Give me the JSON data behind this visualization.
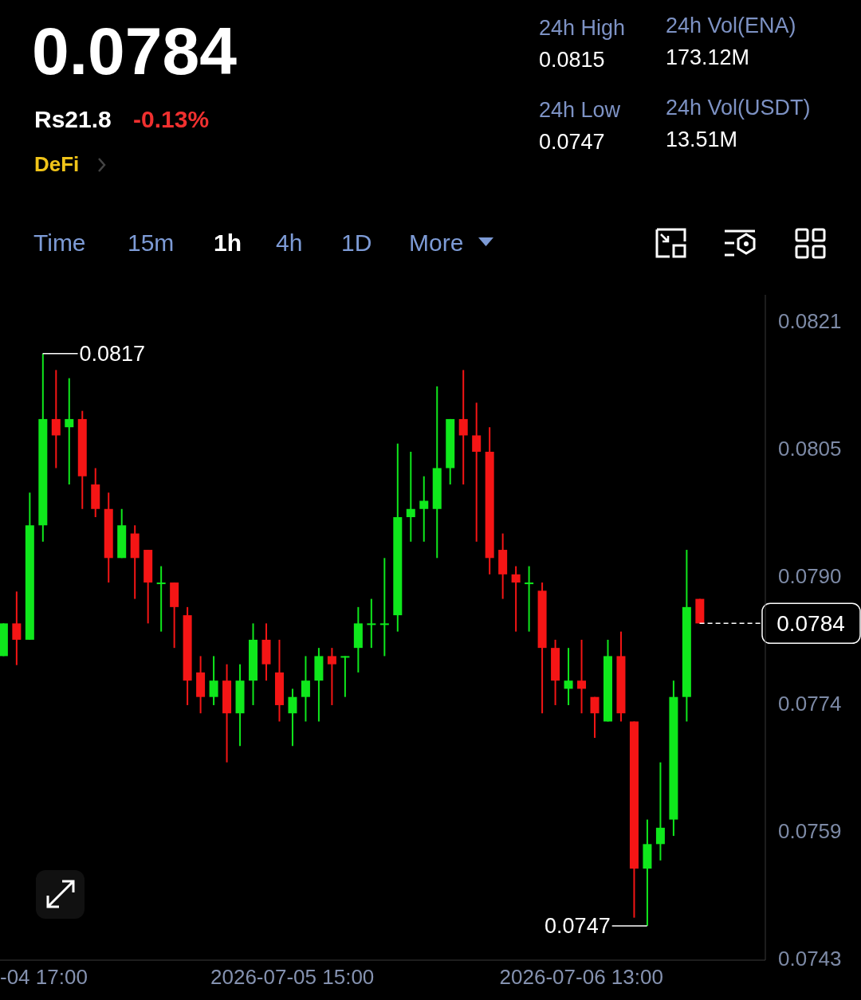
{
  "chart_data": {
    "type": "candlestick",
    "title": "0.0784",
    "annotations": [
      "Rs21.8",
      "-0.13%",
      "DeFi",
      "24h High",
      "0.0815",
      "24h Vol(ENA)",
      "173.12M",
      "24h Low",
      "0.0747",
      "24h Vol(USDT)",
      "13.51M",
      "Time",
      "15m",
      "1h",
      "4h",
      "1D",
      "More",
      {
        "text": "0.0817",
        "x": "2026-07-04T20:00",
        "y": 0.0817
      },
      {
        "text": "0.0747",
        "x": "2026-07-06T18:00",
        "y": 0.0747
      }
    ],
    "x": [
      "2026-07-04T17:00",
      "2026-07-04T18:00",
      "2026-07-04T19:00",
      "2026-07-04T20:00",
      "2026-07-04T21:00",
      "2026-07-04T22:00",
      "2026-07-04T23:00",
      "2026-07-05T00:00",
      "2026-07-05T01:00",
      "2026-07-05T02:00",
      "2026-07-05T03:00",
      "2026-07-05T04:00",
      "2026-07-05T05:00",
      "2026-07-05T06:00",
      "2026-07-05T07:00",
      "2026-07-05T08:00",
      "2026-07-05T09:00",
      "2026-07-05T10:00",
      "2026-07-05T11:00",
      "2026-07-05T12:00",
      "2026-07-05T13:00",
      "2026-07-05T14:00",
      "2026-07-05T15:00",
      "2026-07-05T16:00",
      "2026-07-05T17:00",
      "2026-07-05T18:00",
      "2026-07-05T19:00",
      "2026-07-05T20:00",
      "2026-07-05T21:00",
      "2026-07-05T22:00",
      "2026-07-05T23:00",
      "2026-07-06T00:00",
      "2026-07-06T01:00",
      "2026-07-06T02:00",
      "2026-07-06T03:00",
      "2026-07-06T04:00",
      "2026-07-06T05:00",
      "2026-07-06T06:00",
      "2026-07-06T07:00",
      "2026-07-06T08:00",
      "2026-07-06T09:00",
      "2026-07-06T10:00",
      "2026-07-06T11:00",
      "2026-07-06T12:00",
      "2026-07-06T13:00",
      "2026-07-06T14:00",
      "2026-07-06T15:00",
      "2026-07-06T16:00",
      "2026-07-06T17:00",
      "2026-07-06T18:00",
      "2026-07-06T19:00",
      "2026-07-06T20:00",
      "2026-07-06T21:00",
      "2026-07-06T22:00"
    ],
    "ohlc": [
      [
        0.078,
        0.0784,
        0.078,
        0.0784
      ],
      [
        0.0784,
        0.07879,
        0.07789,
        0.0782
      ],
      [
        0.0782,
        0.08,
        0.0782,
        0.0796
      ],
      [
        0.0796,
        0.0817,
        0.0794,
        0.0809
      ],
      [
        0.0809,
        0.0815,
        0.0803,
        0.0807
      ],
      [
        0.0808,
        0.0814,
        0.0801,
        0.0809
      ],
      [
        0.0809,
        0.081,
        0.0798,
        0.0802
      ],
      [
        0.0801,
        0.0803,
        0.0797,
        0.0798
      ],
      [
        0.0798,
        0.08,
        0.0789,
        0.0792
      ],
      [
        0.0792,
        0.0798,
        0.0792,
        0.0796
      ],
      [
        0.0795,
        0.0796,
        0.0787,
        0.0792
      ],
      [
        0.0793,
        0.0793,
        0.0784,
        0.0789
      ],
      [
        0.0789,
        0.0791,
        0.0783,
        0.0789
      ],
      [
        0.0789,
        0.0789,
        0.0781,
        0.0786
      ],
      [
        0.0785,
        0.0786,
        0.0774,
        0.0777
      ],
      [
        0.0778,
        0.078,
        0.0773,
        0.0775
      ],
      [
        0.0775,
        0.078,
        0.0774,
        0.0777
      ],
      [
        0.0777,
        0.0779,
        0.0767,
        0.0773
      ],
      [
        0.0773,
        0.0779,
        0.0769,
        0.0777
      ],
      [
        0.0777,
        0.0784,
        0.0774,
        0.0782
      ],
      [
        0.0782,
        0.0784,
        0.0777,
        0.0779
      ],
      [
        0.0778,
        0.0782,
        0.0772,
        0.0774
      ],
      [
        0.0773,
        0.0776,
        0.0769,
        0.0775
      ],
      [
        0.0775,
        0.078,
        0.0772,
        0.0777
      ],
      [
        0.0777,
        0.0781,
        0.0772,
        0.078
      ],
      [
        0.078,
        0.0781,
        0.0774,
        0.0779
      ],
      [
        0.078,
        0.078,
        0.0775,
        0.078
      ],
      [
        0.0781,
        0.0786,
        0.0778,
        0.0784
      ],
      [
        0.0784,
        0.0787,
        0.0781,
        0.0784
      ],
      [
        0.0784,
        0.0792,
        0.078,
        0.0784
      ],
      [
        0.0785,
        0.0806,
        0.0783,
        0.0797
      ],
      [
        0.0797,
        0.0805,
        0.0794,
        0.0798
      ],
      [
        0.0798,
        0.0802,
        0.0794,
        0.0799
      ],
      [
        0.0798,
        0.0813,
        0.0792,
        0.0803
      ],
      [
        0.0803,
        0.0809,
        0.0801,
        0.0809
      ],
      [
        0.0809,
        0.0815,
        0.0801,
        0.0807
      ],
      [
        0.0807,
        0.0811,
        0.0794,
        0.0805
      ],
      [
        0.0805,
        0.0808,
        0.079,
        0.0792
      ],
      [
        0.0793,
        0.0795,
        0.0787,
        0.079
      ],
      [
        0.079,
        0.0791,
        0.0783,
        0.0789
      ],
      [
        0.0789,
        0.0791,
        0.0783,
        0.0789
      ],
      [
        0.0788,
        0.0789,
        0.0773,
        0.0781
      ],
      [
        0.0781,
        0.0782,
        0.0774,
        0.0777
      ],
      [
        0.0776,
        0.0781,
        0.0774,
        0.0777
      ],
      [
        0.0777,
        0.0782,
        0.0773,
        0.0776
      ],
      [
        0.0775,
        0.0775,
        0.077,
        0.0773
      ],
      [
        0.0772,
        0.0782,
        0.0772,
        0.078
      ],
      [
        0.078,
        0.0783,
        0.0772,
        0.0773
      ],
      [
        0.0772,
        0.0772,
        0.0748,
        0.0754
      ],
      [
        0.0754,
        0.076,
        0.0747,
        0.0757
      ],
      [
        0.0757,
        0.0767,
        0.0755,
        0.0759
      ],
      [
        0.076,
        0.0777,
        0.0758,
        0.0775
      ],
      [
        0.0775,
        0.0793,
        0.0772,
        0.0786
      ],
      [
        0.0787,
        0.0787,
        0.0784,
        0.0784
      ]
    ],
    "colors": [
      "#0fe81c",
      "#f51515",
      "#0fe81c",
      "#0fe81c",
      "#f51515",
      "#0fe81c",
      "#f51515",
      "#f51515",
      "#f51515",
      "#0fe81c",
      "#f51515",
      "#f51515",
      "#0fe81c",
      "#f51515",
      "#f51515",
      "#f51515",
      "#0fe81c",
      "#f51515",
      "#0fe81c",
      "#0fe81c",
      "#f51515",
      "#f51515",
      "#0fe81c",
      "#0fe81c",
      "#0fe81c",
      "#f51515",
      "#0fe81c",
      "#0fe81c",
      "#0fe81c",
      "#0fe81c",
      "#0fe81c",
      "#0fe81c",
      "#0fe81c",
      "#0fe81c",
      "#0fe81c",
      "#f51515",
      "#f51515",
      "#f51515",
      "#f51515",
      "#f51515",
      "#0fe81c",
      "#f51515",
      "#f51515",
      "#0fe81c",
      "#f51515",
      "#f51515",
      "#0fe81c",
      "#f51515",
      "#f51515",
      "#0fe81c",
      "#0fe81c",
      "#0fe81c",
      "#0fe81c",
      "#f51515"
    ],
    "xticks": [
      {
        "value": "2026-07-04T17:00",
        "label": "-04 17:00"
      },
      {
        "value": "2026-07-05T15:00",
        "label": "2026-07-05 15:00"
      },
      {
        "value": "2026-07-06T13:00",
        "label": "2026-07-06 13:00"
      }
    ],
    "xlim": [
      "2026-07-04T16:45",
      "2026-07-07T03:00"
    ],
    "ylim": [
      0.07428,
      0.08242
    ],
    "yticks": [
      {
        "value": 0.0743,
        "label": "0.0743"
      },
      {
        "value": 0.07586,
        "label": "0.0759"
      },
      {
        "value": 0.07742,
        "label": "0.0774"
      },
      {
        "value": 0.07898,
        "label": "0.0790"
      },
      {
        "value": 0.08054,
        "label": "0.0805"
      },
      {
        "value": 0.0821,
        "label": "0.0821"
      }
    ],
    "ref_lines": [
      {
        "axis": "y",
        "value": 0.0784,
        "label": "0.0784",
        "color": "#ffffff",
        "line_style": "dashed"
      }
    ],
    "grid": false,
    "legend": false
  }
}
